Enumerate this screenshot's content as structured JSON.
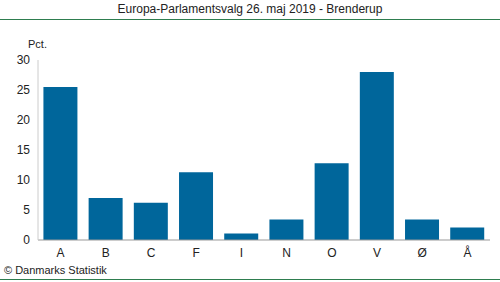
{
  "chart_data": {
    "type": "bar",
    "title": "Europa-Parlamentsvalg 26. maj 2019 - Brenderup",
    "y_label": "Pct.",
    "source": "© Danmarks Statistik",
    "categories": [
      "A",
      "B",
      "C",
      "F",
      "I",
      "N",
      "O",
      "V",
      "Ø",
      "Å"
    ],
    "values": [
      25.5,
      7.0,
      6.2,
      11.3,
      1.1,
      3.4,
      12.8,
      28.0,
      3.4,
      2.1
    ],
    "color": "#00669b",
    "ylim": [
      0,
      30
    ],
    "yticks": [
      0,
      5,
      10,
      15,
      20,
      25,
      30
    ],
    "grid": false
  }
}
